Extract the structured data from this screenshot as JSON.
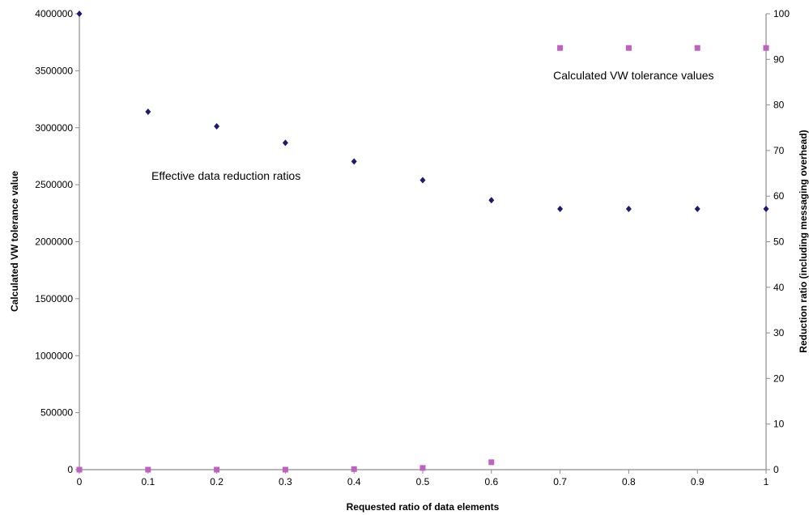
{
  "chart_data": {
    "type": "scatter",
    "title": "",
    "xlabel": "Requested ratio of data elements",
    "ylabel_left": "Calculated VW tolerance value",
    "ylabel_right": "Reduction ratio (including messaging overhead)",
    "x_ticks": [
      "0",
      "0.1",
      "0.2",
      "0.3",
      "0.4",
      "0.5",
      "0.6",
      "0.7",
      "0.8",
      "0.9",
      "1"
    ],
    "y_left_ticks": [
      "0",
      "500000",
      "1000000",
      "1500000",
      "2000000",
      "2500000",
      "3000000",
      "3500000",
      "4000000"
    ],
    "y_right_ticks": [
      "0",
      "10",
      "20",
      "30",
      "40",
      "50",
      "60",
      "70",
      "80",
      "90",
      "100"
    ],
    "xlim": [
      0,
      1
    ],
    "ylim_left": [
      0,
      4000000
    ],
    "ylim_right": [
      0,
      100
    ],
    "grid": false,
    "legend": "none",
    "series": [
      {
        "axis": "left",
        "marker": "square",
        "color": "#c060c0",
        "x": [
          0,
          0.1,
          0.2,
          0.3,
          0.4,
          0.5,
          0.6,
          0.7,
          0.8,
          0.9,
          1
        ],
        "values": [
          0,
          0,
          0,
          0,
          5000,
          15000,
          65000,
          3700000,
          3700000,
          3700000,
          3700000
        ]
      },
      {
        "axis": "right",
        "marker": "diamond",
        "color": "#1f1a6b",
        "x": [
          0,
          0.1,
          0.2,
          0.3,
          0.4,
          0.5,
          0.6,
          0.7,
          0.8,
          0.9,
          1
        ],
        "values": [
          100,
          78.5,
          75.3,
          71.7,
          67.6,
          63.5,
          59.1,
          57.2,
          57.2,
          57.2,
          57.2
        ]
      }
    ],
    "annotations": [
      {
        "text": "Calculated VW tolerance values",
        "anchor_x": 0.69,
        "anchor_y_right": 86.5
      },
      {
        "text": "Effective data reduction ratios",
        "anchor_x": 0.105,
        "anchor_y_right": 64.5
      }
    ]
  }
}
